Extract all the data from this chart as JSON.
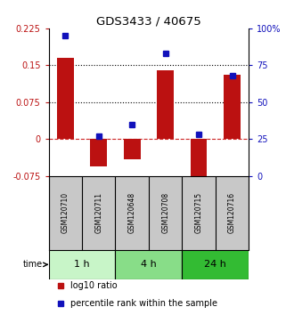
{
  "title": "GDS3433 / 40675",
  "samples": [
    "GSM120710",
    "GSM120711",
    "GSM120648",
    "GSM120708",
    "GSM120715",
    "GSM120716"
  ],
  "log10_ratio": [
    0.165,
    -0.055,
    -0.042,
    0.14,
    -0.09,
    0.13
  ],
  "percentile_rank": [
    95,
    27,
    35,
    83,
    28,
    68
  ],
  "time_groups": [
    {
      "label": "1 h",
      "start": 0,
      "end": 2,
      "color": "#c8f5c8"
    },
    {
      "label": "4 h",
      "start": 2,
      "end": 4,
      "color": "#88dd88"
    },
    {
      "label": "24 h",
      "start": 4,
      "end": 6,
      "color": "#33bb33"
    }
  ],
  "ylim_left": [
    -0.075,
    0.225
  ],
  "ylim_right": [
    0,
    100
  ],
  "yticks_left": [
    -0.075,
    0,
    0.075,
    0.15,
    0.225
  ],
  "yticks_right": [
    0,
    25,
    50,
    75,
    100
  ],
  "hlines": [
    0.075,
    0.15
  ],
  "bar_color": "#bb1111",
  "dot_color": "#1111bb",
  "zero_line_color": "#cc2222",
  "background_color": "#ffffff",
  "label_bg": "#c8c8c8"
}
